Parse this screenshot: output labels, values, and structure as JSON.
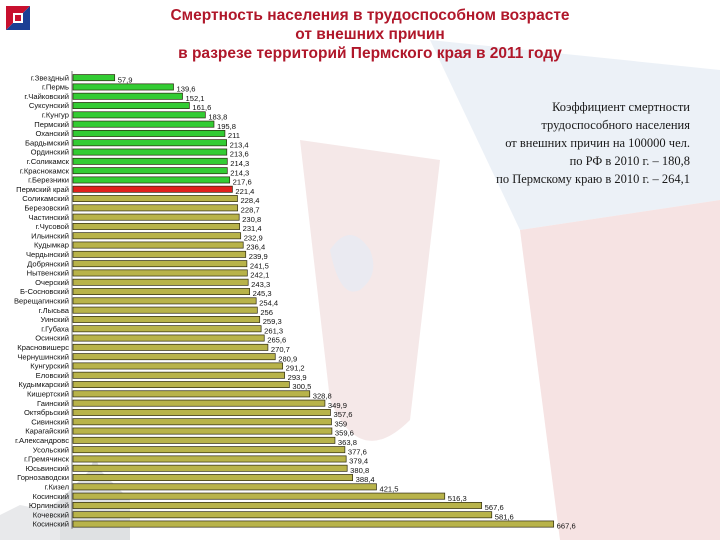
{
  "header": {
    "title_lines": [
      "Смертность населения в трудоспособном возрасте",
      "от внешних причин",
      "в разрезе территорий Пермского края в 2011 году"
    ]
  },
  "note": {
    "lines": [
      "Коэффициент смертности",
      "трудоспособного населения",
      "от внешних причин на 100000 чел.",
      "по РФ в 2010 г. – 180,8",
      "по Пермскому краю в 2010 г. – 264,1"
    ]
  },
  "colors": {
    "title": "#b0172a",
    "bar_green": "#33cc33",
    "bar_red": "#e0201c",
    "bar_olive": "#b8b34a",
    "bar_outline": "#2d2a10"
  },
  "chart_data": {
    "type": "bar",
    "orientation": "horizontal",
    "title": "Смертность населения в трудоспособном возрасте от внешних причин в разрезе территорий Пермского края в 2011 году",
    "categories": [
      "г.Звездный",
      "г.Пермь",
      "г.Чайковский",
      "Суксунский",
      "г.Кунгур",
      "Пермский",
      "Оханский",
      "Бардымский",
      "Ординский",
      "г.Соликамск",
      "г.Краснокамск",
      "г.Березники",
      "Пермский край",
      "Соликамский",
      "Березовский",
      "Частинский",
      "г.Чусовой",
      "Ильинский",
      "Кудымкар",
      "Чердынский",
      "Добрянский",
      "Нытвенский",
      "Очерский",
      "Б-Сосновский",
      "Верещагинский",
      "г.Лысьва",
      "Уинский",
      "г.Губаха",
      "Осинский",
      "Красновишерс",
      "Чернушинский",
      "Кунгурский",
      "Еловский",
      "Кудымкарский",
      "Кишертский",
      "Гаинский",
      "Октябрьский",
      "Сивинский",
      "Карагайский",
      "г.Александровс",
      "Усольский",
      "г.Гремячинск",
      "Юсьвинский",
      "Горнозаводски",
      "г.Кизел",
      "Косинский",
      "Юрлинский",
      "Кочевский",
      "Косинский"
    ],
    "value_labels": [
      "57,9",
      "139,6",
      "152,1",
      "161,6",
      "183,8",
      "195,8",
      "211",
      "213,4",
      "213,6",
      "214,3",
      "214,3",
      "217,6",
      "221,4",
      "228,4",
      "228,7",
      "230,8",
      "231,4",
      "232,9",
      "236,4",
      "239,9",
      "241,5",
      "242,1",
      "243,3",
      "245,3",
      "254,4",
      "256",
      "259,3",
      "261,3",
      "265,6",
      "270,7",
      "280,9",
      "291,2",
      "293,9",
      "300,5",
      "328,8",
      "349,9",
      "357,6",
      "359",
      "359,6",
      "363,8",
      "377,6",
      "379,4",
      "380,8",
      "388,4",
      "421,5",
      "516,3",
      "567,6",
      "581,6",
      "667,6"
    ],
    "values": [
      57.9,
      139.6,
      152.1,
      161.6,
      183.8,
      195.8,
      211,
      213.4,
      213.6,
      214.3,
      214.3,
      217.6,
      221.4,
      228.4,
      228.7,
      230.8,
      231.4,
      232.9,
      236.4,
      239.9,
      241.5,
      242.1,
      243.3,
      245.3,
      254.4,
      256,
      259.3,
      261.3,
      265.6,
      270.7,
      280.9,
      291.2,
      293.9,
      300.5,
      328.8,
      349.9,
      357.6,
      359,
      359.6,
      363.8,
      377.6,
      379.4,
      380.8,
      388.4,
      421.5,
      516.3,
      567.6,
      581.6,
      667.6
    ],
    "highlight_category": "Пермский край",
    "green_count": 12,
    "xlim": [
      0,
      700
    ],
    "grid": false,
    "legend": "none"
  }
}
